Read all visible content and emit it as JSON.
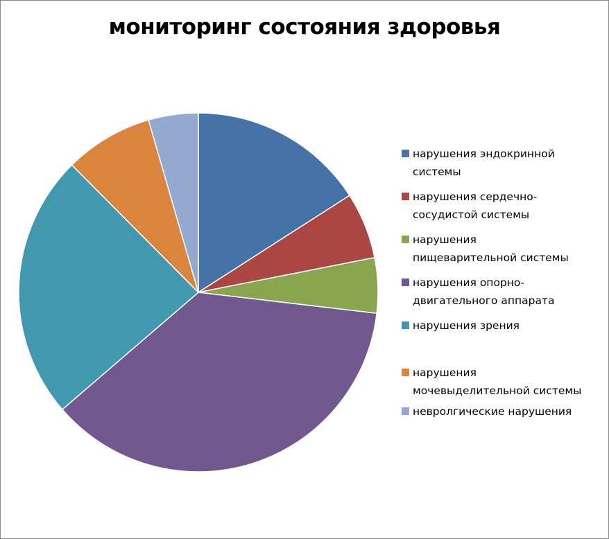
{
  "chart_data": {
    "type": "pie",
    "title": "мониторинг состояния здоровья",
    "categories": [
      "нарушения эндокринной системы",
      "нарушения сердечно-сосудистой системы",
      "нарушения пищеварительной системы",
      "нарушения опорно-двигательного аппарата",
      "нарушения зрения",
      "нарушения мочевыделительной системы",
      "невролгические нарушения"
    ],
    "values": [
      16,
      6,
      5,
      37,
      24,
      8,
      4.5
    ],
    "colors": [
      "#4572A7",
      "#AA4643",
      "#89A54E",
      "#71588F",
      "#4198AF",
      "#DB843D",
      "#93A9CF"
    ],
    "legend_position": "right"
  }
}
